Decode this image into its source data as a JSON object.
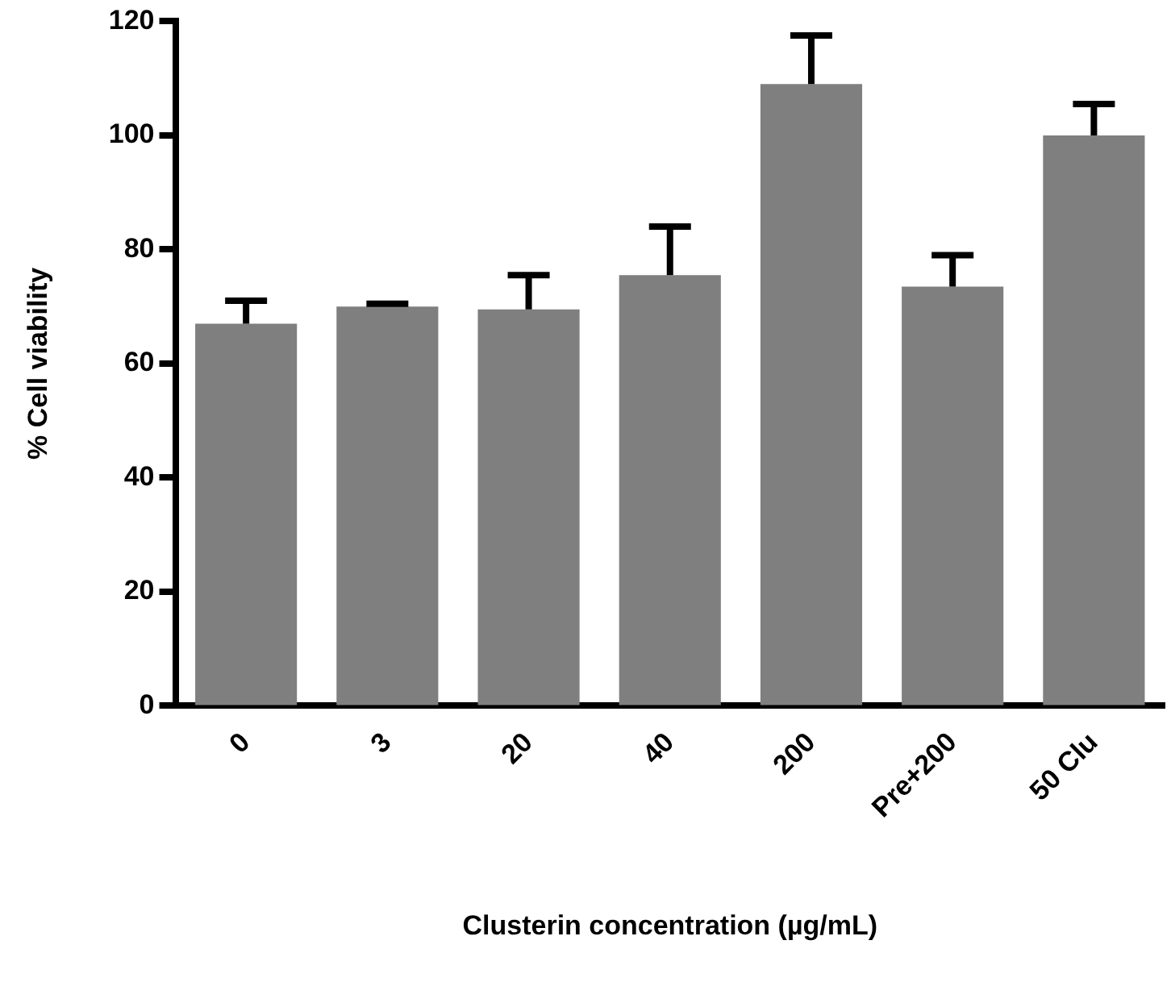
{
  "chart_data": {
    "type": "bar",
    "categories": [
      "0",
      "3",
      "20",
      "40",
      "200",
      "Pre+200",
      "50 Clu"
    ],
    "values": [
      67,
      70,
      69.5,
      75.5,
      109,
      73.5,
      100
    ],
    "errors": [
      [
        67,
        71
      ],
      [
        70,
        70.5
      ],
      [
        69.5,
        75.5
      ],
      [
        75.5,
        84
      ],
      [
        109,
        117.5
      ],
      [
        73.5,
        79
      ],
      [
        100,
        105.5
      ]
    ],
    "color": "#7f7f7f",
    "xlabel": "Clusterin concentration (µg/mL)",
    "ylabel": "% Cell viability",
    "ylim": [
      0,
      120
    ],
    "yticks": [
      0,
      20,
      40,
      60,
      80,
      100,
      120
    ],
    "grid": false,
    "legend": false
  }
}
